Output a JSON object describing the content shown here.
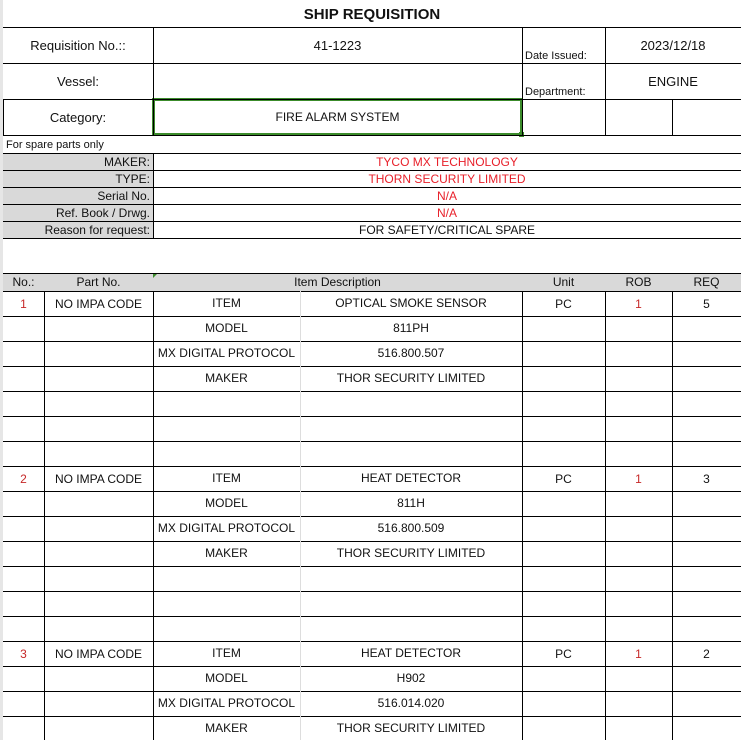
{
  "title": "SHIP REQUISITION",
  "header": {
    "requisition_label": "Requisition No.::",
    "requisition_value": "41-1223",
    "date_label": "Date Issued:",
    "date_value": "2023/12/18",
    "vessel_label": "Vessel:",
    "vessel_value": "",
    "department_label": "Department:",
    "department_value": "ENGINE",
    "category_label": "Category:",
    "category_value": "FIRE ALARM SYSTEM"
  },
  "spare_note": "For spare parts only",
  "spare_info": [
    {
      "label": "MAKER:",
      "value": "TYCO MX TECHNOLOGY",
      "red": true
    },
    {
      "label": "TYPE:",
      "value": "THORN SECURITY LIMITED",
      "red": true
    },
    {
      "label": "Serial No.",
      "value": "N/A",
      "red": true
    },
    {
      "label": "Ref. Book / Drwg.",
      "value": "N/A",
      "red": true
    },
    {
      "label": "Reason for request:",
      "value": "FOR SAFETY/CRITICAL SPARE",
      "red": false
    }
  ],
  "table_headers": {
    "no": "No.:",
    "part": "Part No.",
    "desc": "Item Description",
    "unit": "Unit",
    "rob": "ROB",
    "req": "REQ"
  },
  "items": [
    {
      "no": "1",
      "part": "NO IMPA CODE",
      "unit": "PC",
      "rob": "1",
      "req": "5",
      "details": [
        [
          "ITEM",
          "OPTICAL SMOKE SENSOR"
        ],
        [
          "MODEL",
          "811PH"
        ],
        [
          "MX DIGITAL PROTOCOL",
          "516.800.507"
        ],
        [
          "MAKER",
          "THOR SECURITY LIMITED"
        ]
      ]
    },
    {
      "no": "2",
      "part": "NO IMPA CODE",
      "unit": "PC",
      "rob": "1",
      "req": "3",
      "details": [
        [
          "ITEM",
          "HEAT DETECTOR"
        ],
        [
          "MODEL",
          "811H"
        ],
        [
          "MX DIGITAL PROTOCOL",
          "516.800.509"
        ],
        [
          "MAKER",
          "THOR SECURITY LIMITED"
        ]
      ]
    },
    {
      "no": "3",
      "part": "NO IMPA CODE",
      "unit": "PC",
      "rob": "1",
      "req": "2",
      "details": [
        [
          "ITEM",
          "HEAT DETECTOR"
        ],
        [
          "MODEL",
          "H902"
        ],
        [
          "MX DIGITAL PROTOCOL",
          "516.014.020"
        ],
        [
          "MAKER",
          "THOR SECURITY LIMITED"
        ]
      ]
    }
  ],
  "colors": {
    "selection": "#3c8c2c",
    "red_text": "#e8202a",
    "label_fill": "#d9d9d9"
  }
}
